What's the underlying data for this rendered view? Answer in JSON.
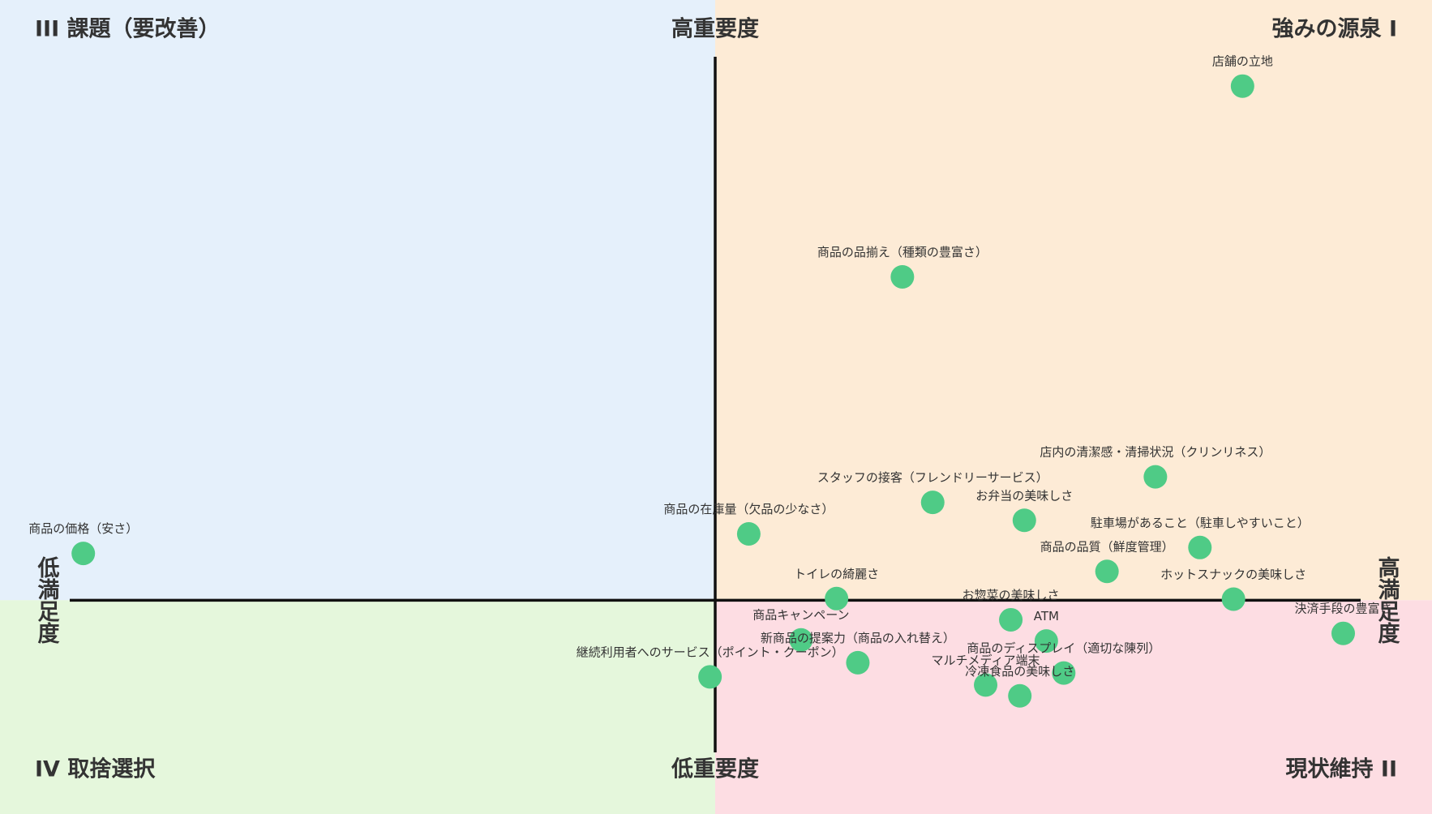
{
  "chart_data": {
    "type": "quadrant",
    "quadrant_labels": {
      "top_left": "III 課題（要改善）",
      "top_right": "強みの源泉 I",
      "bottom_left": "IV 取捨選択",
      "bottom_right": "現状維持 II"
    },
    "y_axis_labels": {
      "top": "高重要度",
      "bottom": "低重要度"
    },
    "x_axis_labels": {
      "left": "低満足度",
      "right": "高満足度"
    },
    "xlim": [
      -1,
      1
    ],
    "ylim": [
      -0.28,
      1
    ],
    "color": "#4fcb86",
    "quadrant_colors": {
      "top_left": "#e5f0fb",
      "top_right": "#fdebd6",
      "bottom_left": "#e5f7dc",
      "bottom_right": "#fdddE3"
    },
    "points": [
      {
        "name": "店舗の立地",
        "x": 0.817,
        "y": 0.946
      },
      {
        "name": "商品の品揃え（種類の豊富さ）",
        "x": 0.29,
        "y": 0.595
      },
      {
        "name": "店内の清潔感・清掃状況（クリンリネス）",
        "x": 0.682,
        "y": 0.227
      },
      {
        "name": "スタッフの接客（フレンドリーサービス）",
        "x": 0.337,
        "y": 0.18
      },
      {
        "name": "お弁当の美味しさ",
        "x": 0.479,
        "y": 0.147
      },
      {
        "name": "駐車場があること（駐車しやすいこと）",
        "x": 0.751,
        "y": 0.097
      },
      {
        "name": "商品の在庫量（欠品の少なさ）",
        "x": 0.052,
        "y": 0.122
      },
      {
        "name": "商品の品質（鮮度管理）",
        "x": 0.607,
        "y": 0.053
      },
      {
        "name": "商品の価格（安さ）",
        "x": -0.979,
        "y": 0.086
      },
      {
        "name": "トイレの綺麗さ",
        "x": 0.188,
        "y": 0.003
      },
      {
        "name": "ホットスナックの美味しさ",
        "x": 0.803,
        "y": 0.002
      },
      {
        "name": "お惣菜の美味しさ",
        "x": 0.458,
        "y": -0.036
      },
      {
        "name": "決済手段の豊富さ",
        "x": 0.973,
        "y": -0.061
      },
      {
        "name": "ATM",
        "x": 0.513,
        "y": -0.075
      },
      {
        "name": "商品キャンペーン",
        "x": 0.133,
        "y": -0.073
      },
      {
        "name": "新商品の提案力（商品の入れ替え）",
        "x": 0.221,
        "y": -0.115
      },
      {
        "name": "商品のディスプレイ（適切な陳列）",
        "x": 0.54,
        "y": -0.134
      },
      {
        "name": "マルチメディア端末",
        "x": 0.419,
        "y": -0.156
      },
      {
        "name": "冷凍食品の美味しさ",
        "x": 0.472,
        "y": -0.176
      },
      {
        "name": "継続利用者へのサービス（ポイント・クーポン）",
        "x": -0.008,
        "y": -0.141
      }
    ]
  }
}
